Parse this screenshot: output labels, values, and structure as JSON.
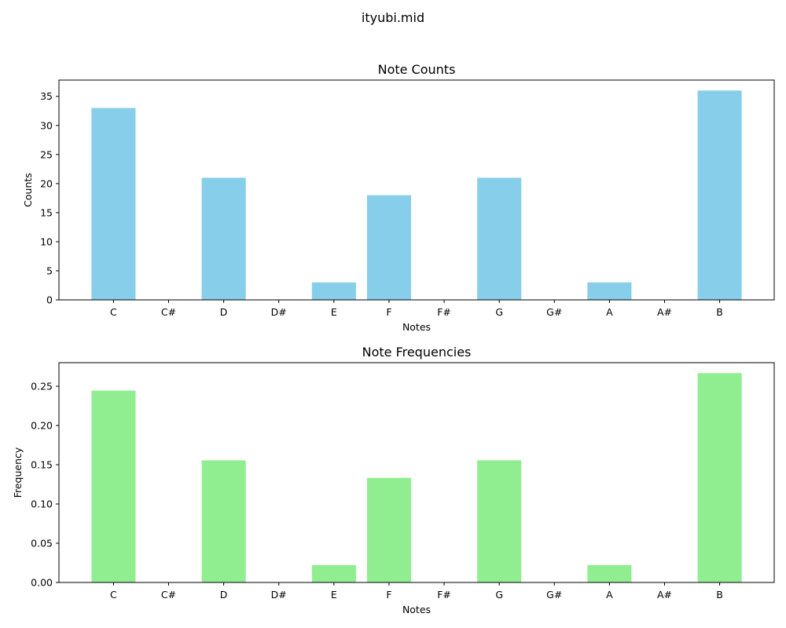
{
  "suptitle": "ityubi.mid",
  "chart_data": [
    {
      "type": "bar",
      "title": "Note Counts",
      "xlabel": "Notes",
      "ylabel": "Counts",
      "categories": [
        "C",
        "C#",
        "D",
        "D#",
        "E",
        "F",
        "F#",
        "G",
        "G#",
        "A",
        "A#",
        "B"
      ],
      "values": [
        33,
        0,
        21,
        0,
        3,
        18,
        0,
        21,
        0,
        3,
        0,
        36
      ],
      "ylim": [
        0,
        37.8
      ],
      "yticks": [
        "0",
        "5",
        "10",
        "15",
        "20",
        "25",
        "30",
        "35"
      ],
      "color": "#87ceeb",
      "grid": false,
      "legend": false
    },
    {
      "type": "bar",
      "title": "Note Frequencies",
      "xlabel": "Notes",
      "ylabel": "Frequency",
      "categories": [
        "C",
        "C#",
        "D",
        "D#",
        "E",
        "F",
        "F#",
        "G",
        "G#",
        "A",
        "A#",
        "B"
      ],
      "values": [
        0.2444,
        0,
        0.1556,
        0,
        0.0222,
        0.1333,
        0,
        0.1556,
        0,
        0.0222,
        0,
        0.2667
      ],
      "ylim": [
        0,
        0.28
      ],
      "yticks": [
        "0.00",
        "0.05",
        "0.10",
        "0.15",
        "0.20",
        "0.25"
      ],
      "color": "#90ee90",
      "grid": false,
      "legend": false
    }
  ]
}
